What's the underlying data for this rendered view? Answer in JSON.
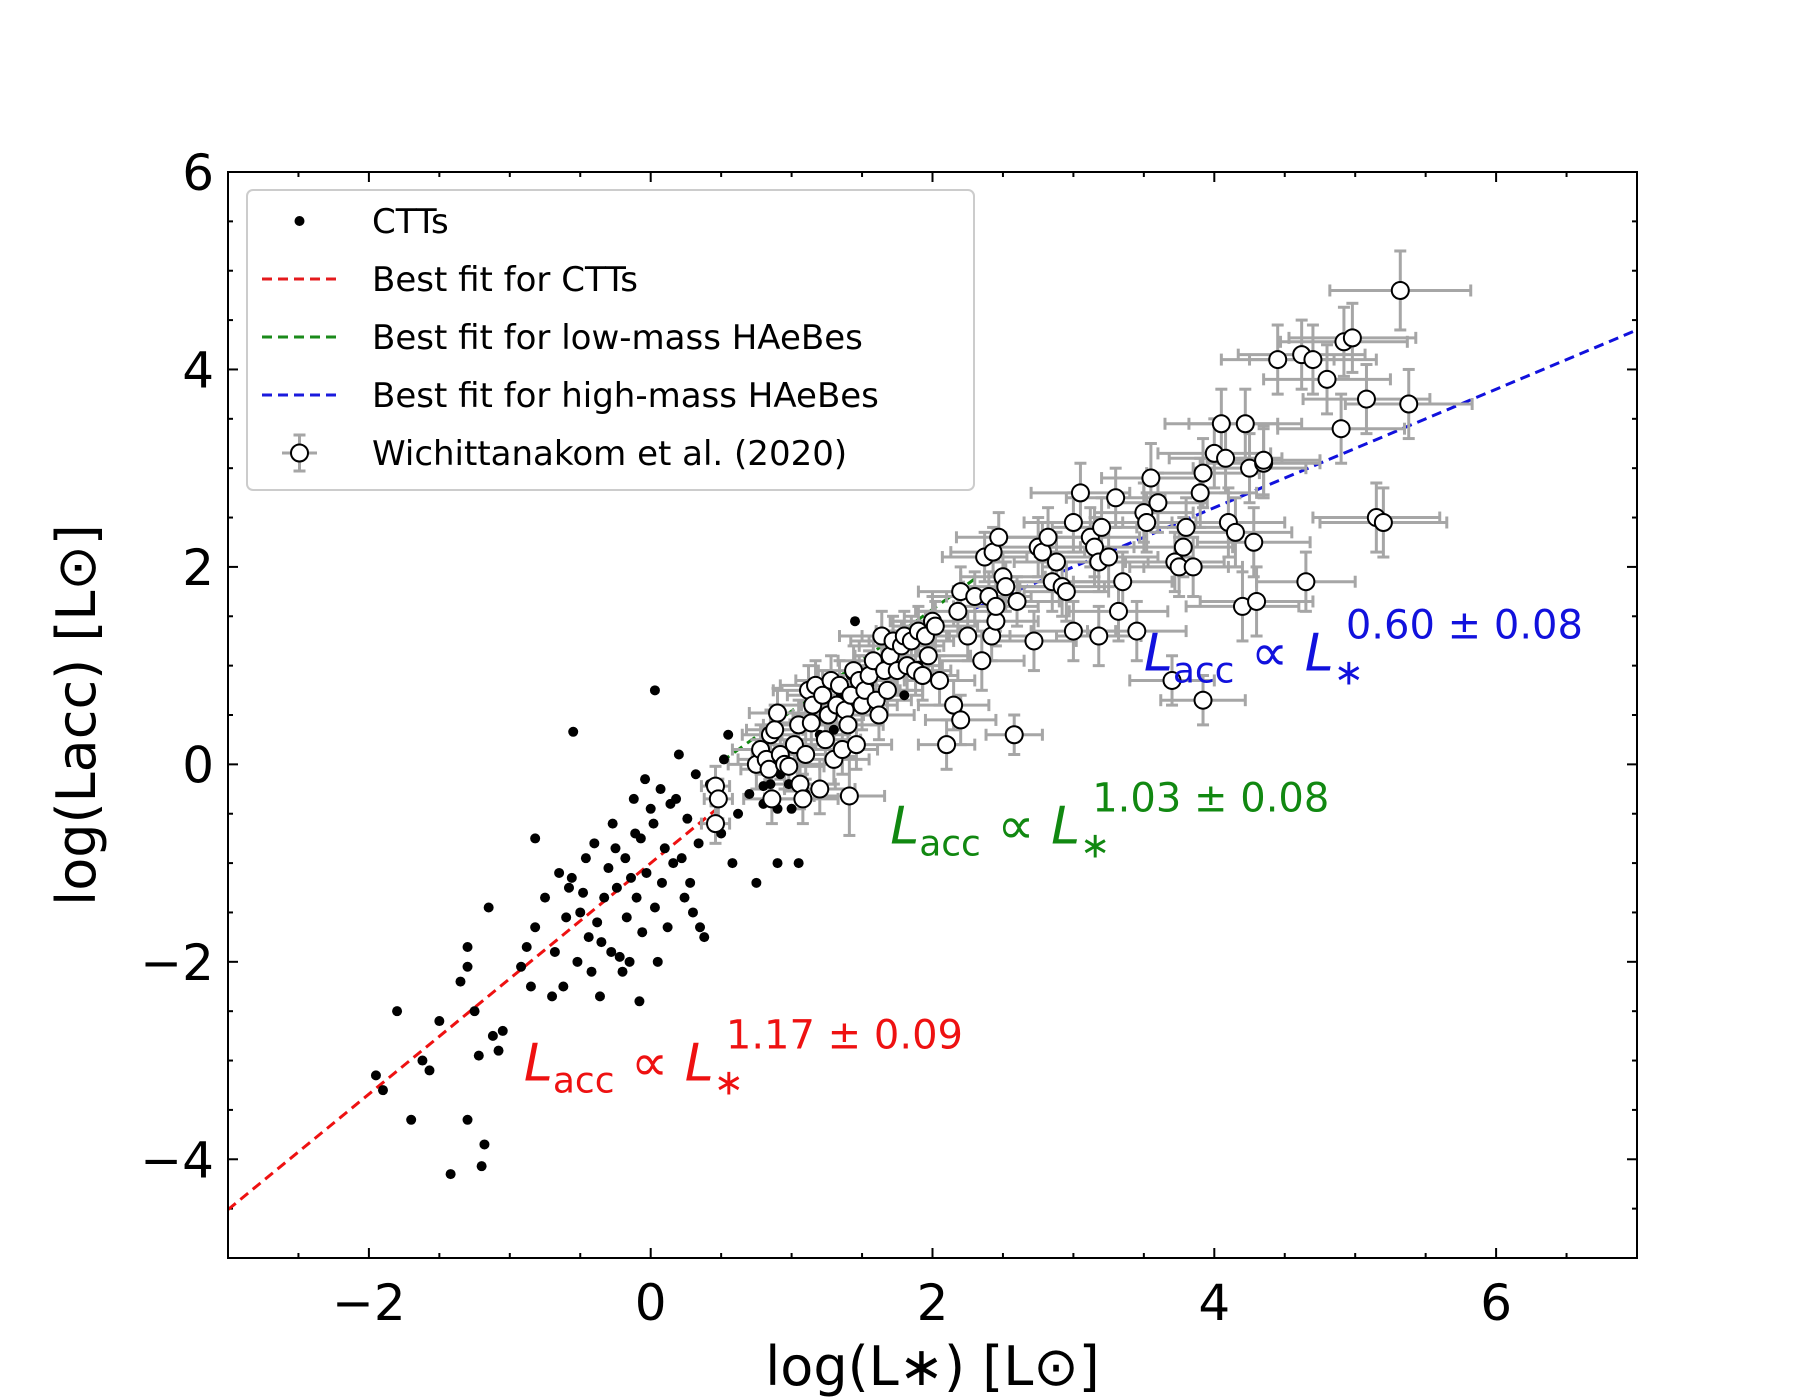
{
  "chart_data": {
    "type": "scatter",
    "xlabel": "log(L∗) [L⊙]",
    "ylabel": "log(Lacc) [L⊙]",
    "xlim": [
      -3,
      7
    ],
    "ylim": [
      -5,
      6
    ],
    "xticks": [
      -2,
      0,
      2,
      4,
      6
    ],
    "yticks": [
      -4,
      -2,
      0,
      2,
      4,
      6
    ],
    "xtick_labels": [
      "−2",
      "0",
      "2",
      "4",
      "6"
    ],
    "ytick_labels": [
      "−4",
      "−2",
      "0",
      "2",
      "4",
      "6"
    ],
    "legend": {
      "position": "upper-left",
      "entries": [
        {
          "label": "CTTs",
          "marker": "dot",
          "color": "#000000"
        },
        {
          "label": "Best fit for CTTs",
          "marker": "dashed-line",
          "color": "#e41a1c"
        },
        {
          "label": "Best fit for low-mass HAeBes",
          "marker": "dashed-line",
          "color": "#1a8a1a"
        },
        {
          "label": "Best fit for high-mass HAeBes",
          "marker": "dashed-line",
          "color": "#1a1add"
        },
        {
          "label": "Wichittanakom et al. (2020)",
          "marker": "open-circle-errorbar",
          "color": "#000000"
        }
      ]
    },
    "fits": [
      {
        "name": "Best fit for CTTs",
        "color": "#ee1111",
        "slope": 1.17,
        "x_range": [
          -3,
          0.5
        ],
        "y_at_x0": -1.0
      },
      {
        "name": "Best fit for low-mass HAeBes",
        "color": "#118811",
        "slope": 1.03,
        "x_range": [
          0.5,
          2.3
        ],
        "y_at_x0": -0.49
      },
      {
        "name": "Best fit for high-mass HAeBes",
        "color": "#1111dd",
        "slope": 0.6,
        "x_range": [
          2.3,
          7
        ],
        "y_at_x0": 0.2
      }
    ],
    "annotations": [
      {
        "base": "L",
        "sub": "acc",
        "mid": " ∝ ",
        "base2": "L",
        "sub2": "∗",
        "sup": "1.17 ± 0.09",
        "x": -0.9,
        "y": -3.2,
        "color": "#ee1111"
      },
      {
        "base": "L",
        "sub": "acc",
        "mid": " ∝ ",
        "base2": "L",
        "sub2": "∗",
        "sup": "1.03 ± 0.08",
        "x": 1.7,
        "y": -0.8,
        "color": "#118811"
      },
      {
        "base": "L",
        "sub": "acc",
        "mid": " ∝ ",
        "base2": "L",
        "sub2": "∗",
        "sup": "0.60 ± 0.08",
        "x": 3.5,
        "y": 0.95,
        "color": "#1111dd"
      }
    ],
    "ctts": [
      [
        -1.95,
        -3.15
      ],
      [
        -1.9,
        -3.3
      ],
      [
        -1.8,
        -2.5
      ],
      [
        -1.7,
        -3.6
      ],
      [
        -1.62,
        -3.0
      ],
      [
        -1.57,
        -3.1
      ],
      [
        -1.5,
        -2.6
      ],
      [
        -1.42,
        -4.15
      ],
      [
        -1.35,
        -2.2
      ],
      [
        -1.3,
        -1.85
      ],
      [
        -1.3,
        -2.05
      ],
      [
        -1.3,
        -3.6
      ],
      [
        -1.25,
        -2.5
      ],
      [
        -1.22,
        -2.95
      ],
      [
        -1.2,
        -4.07
      ],
      [
        -1.18,
        -3.85
      ],
      [
        -1.15,
        -1.45
      ],
      [
        -1.12,
        -2.75
      ],
      [
        -1.08,
        -2.9
      ],
      [
        -1.05,
        -2.7
      ],
      [
        -0.92,
        -2.05
      ],
      [
        -0.88,
        -1.85
      ],
      [
        -0.85,
        -2.25
      ],
      [
        -0.82,
        -0.75
      ],
      [
        -0.82,
        -1.65
      ],
      [
        -0.75,
        -1.35
      ],
      [
        -0.7,
        -2.35
      ],
      [
        -0.68,
        -1.9
      ],
      [
        -0.65,
        -1.1
      ],
      [
        -0.62,
        -2.25
      ],
      [
        -0.6,
        -1.55
      ],
      [
        -0.58,
        -1.25
      ],
      [
        -0.56,
        -1.15
      ],
      [
        -0.55,
        0.33
      ],
      [
        -0.52,
        -2.0
      ],
      [
        -0.5,
        -1.5
      ],
      [
        -0.48,
        -1.3
      ],
      [
        -0.46,
        -0.95
      ],
      [
        -0.44,
        -1.75
      ],
      [
        -0.42,
        -2.1
      ],
      [
        -0.4,
        -0.8
      ],
      [
        -0.38,
        -1.6
      ],
      [
        -0.36,
        -2.35
      ],
      [
        -0.35,
        -1.8
      ],
      [
        -0.33,
        -1.35
      ],
      [
        -0.3,
        -1.05
      ],
      [
        -0.28,
        -1.9
      ],
      [
        -0.27,
        -0.6
      ],
      [
        -0.25,
        -0.85
      ],
      [
        -0.24,
        -1.25
      ],
      [
        -0.22,
        -1.95
      ],
      [
        -0.2,
        -2.1
      ],
      [
        -0.18,
        -0.95
      ],
      [
        -0.17,
        -1.55
      ],
      [
        -0.15,
        -2.0
      ],
      [
        -0.14,
        -1.15
      ],
      [
        -0.12,
        -0.35
      ],
      [
        -0.11,
        -0.7
      ],
      [
        -0.1,
        -1.35
      ],
      [
        -0.08,
        -2.4
      ],
      [
        -0.07,
        -0.75
      ],
      [
        -0.06,
        -1.7
      ],
      [
        -0.04,
        -0.15
      ],
      [
        -0.03,
        -1.1
      ],
      [
        0.0,
        -0.45
      ],
      [
        0.02,
        -0.6
      ],
      [
        0.03,
        -1.45
      ],
      [
        0.03,
        0.75
      ],
      [
        0.05,
        -2.0
      ],
      [
        0.07,
        -0.25
      ],
      [
        0.08,
        -1.2
      ],
      [
        0.1,
        -0.85
      ],
      [
        0.12,
        -1.65
      ],
      [
        0.14,
        -0.4
      ],
      [
        0.16,
        -1.0
      ],
      [
        0.18,
        -0.35
      ],
      [
        0.2,
        0.1
      ],
      [
        0.22,
        -0.95
      ],
      [
        0.24,
        -1.35
      ],
      [
        0.26,
        -0.55
      ],
      [
        0.28,
        -1.2
      ],
      [
        0.3,
        -1.5
      ],
      [
        0.32,
        -0.1
      ],
      [
        0.34,
        -0.8
      ],
      [
        0.35,
        -1.65
      ],
      [
        0.38,
        -1.75
      ],
      [
        0.42,
        -0.2
      ],
      [
        0.45,
        -0.6
      ],
      [
        0.5,
        -0.7
      ],
      [
        0.52,
        0.05
      ],
      [
        0.55,
        0.3
      ],
      [
        0.58,
        -1.0
      ],
      [
        0.62,
        -0.5
      ],
      [
        0.7,
        -0.3
      ],
      [
        0.75,
        -1.2
      ],
      [
        0.8,
        -0.4
      ],
      [
        0.8,
        -0.22
      ],
      [
        0.85,
        -0.2
      ],
      [
        0.9,
        -1.0
      ],
      [
        0.9,
        -0.45
      ],
      [
        0.92,
        -0.1
      ],
      [
        0.98,
        -0.2
      ],
      [
        1.0,
        -0.45
      ],
      [
        1.05,
        -1.0
      ],
      [
        1.1,
        -0.3
      ],
      [
        1.2,
        0.3
      ],
      [
        1.3,
        0.35
      ],
      [
        1.35,
        0.7
      ],
      [
        1.38,
        0.65
      ],
      [
        1.42,
        0.9
      ],
      [
        1.45,
        1.45
      ],
      [
        1.55,
        0.8
      ],
      [
        1.65,
        0.75
      ],
      [
        1.75,
        0.95
      ],
      [
        1.8,
        0.7
      ],
      [
        1.9,
        1.0
      ]
    ],
    "haebes": [
      [
        0.46,
        -0.22,
        0.1,
        0.2
      ],
      [
        0.46,
        -0.6,
        0.1,
        0.2
      ],
      [
        0.48,
        -0.35,
        0.1,
        0.2
      ],
      [
        0.75,
        0.0,
        0.2,
        0.25
      ],
      [
        0.78,
        0.15,
        0.2,
        0.25
      ],
      [
        0.82,
        0.05,
        0.2,
        0.25
      ],
      [
        0.84,
        -0.05,
        0.2,
        0.25
      ],
      [
        0.85,
        0.3,
        0.2,
        0.25
      ],
      [
        0.86,
        -0.35,
        0.2,
        0.25
      ],
      [
        0.88,
        0.35,
        0.2,
        0.25
      ],
      [
        0.9,
        0.52,
        0.2,
        0.25
      ],
      [
        0.92,
        0.1,
        0.2,
        0.25
      ],
      [
        0.95,
        0.0,
        0.25,
        0.25
      ],
      [
        0.98,
        -0.02,
        0.25,
        0.25
      ],
      [
        1.02,
        0.2,
        0.25,
        0.25
      ],
      [
        1.05,
        0.4,
        0.25,
        0.25
      ],
      [
        1.06,
        -0.2,
        0.25,
        0.25
      ],
      [
        1.08,
        -0.35,
        0.25,
        0.25
      ],
      [
        1.1,
        0.1,
        0.25,
        0.25
      ],
      [
        1.12,
        0.75,
        0.25,
        0.25
      ],
      [
        1.14,
        0.42,
        0.25,
        0.25
      ],
      [
        1.15,
        0.6,
        0.25,
        0.25
      ],
      [
        1.17,
        0.8,
        0.25,
        0.25
      ],
      [
        1.2,
        -0.25,
        0.25,
        0.25
      ],
      [
        1.22,
        0.7,
        0.25,
        0.25
      ],
      [
        1.24,
        0.25,
        0.25,
        0.25
      ],
      [
        1.26,
        0.5,
        0.25,
        0.25
      ],
      [
        1.28,
        0.85,
        0.25,
        0.25
      ],
      [
        1.3,
        0.05,
        0.25,
        0.25
      ],
      [
        1.32,
        0.6,
        0.25,
        0.25
      ],
      [
        1.34,
        0.8,
        0.25,
        0.25
      ],
      [
        1.36,
        0.15,
        0.25,
        0.25
      ],
      [
        1.38,
        0.55,
        0.25,
        0.25
      ],
      [
        1.4,
        0.4,
        0.25,
        0.25
      ],
      [
        1.41,
        -0.32,
        0.25,
        0.4
      ],
      [
        1.42,
        0.7,
        0.25,
        0.25
      ],
      [
        1.44,
        0.95,
        0.25,
        0.25
      ],
      [
        1.46,
        0.2,
        0.25,
        0.25
      ],
      [
        1.48,
        0.85,
        0.25,
        0.25
      ],
      [
        1.5,
        0.6,
        0.25,
        0.25
      ],
      [
        1.52,
        0.75,
        0.25,
        0.25
      ],
      [
        1.55,
        0.9,
        0.25,
        0.25
      ],
      [
        1.58,
        1.05,
        0.25,
        0.25
      ],
      [
        1.6,
        0.65,
        0.25,
        0.25
      ],
      [
        1.62,
        0.5,
        0.25,
        0.25
      ],
      [
        1.64,
        1.3,
        0.3,
        0.25
      ],
      [
        1.66,
        0.95,
        0.25,
        0.25
      ],
      [
        1.68,
        0.75,
        0.25,
        0.25
      ],
      [
        1.7,
        1.1,
        0.25,
        0.25
      ],
      [
        1.72,
        1.25,
        0.3,
        0.25
      ],
      [
        1.75,
        0.95,
        0.25,
        0.25
      ],
      [
        1.78,
        1.2,
        0.3,
        0.25
      ],
      [
        1.8,
        1.3,
        0.3,
        0.25
      ],
      [
        1.82,
        1.0,
        0.25,
        0.25
      ],
      [
        1.85,
        1.25,
        0.3,
        0.25
      ],
      [
        1.88,
        0.95,
        0.25,
        0.25
      ],
      [
        1.9,
        1.35,
        0.3,
        0.25
      ],
      [
        1.93,
        0.9,
        0.25,
        0.25
      ],
      [
        1.95,
        1.3,
        0.3,
        0.25
      ],
      [
        1.97,
        1.1,
        0.3,
        0.25
      ],
      [
        2.0,
        1.45,
        0.3,
        0.25
      ],
      [
        2.02,
        1.4,
        0.3,
        0.25
      ],
      [
        2.05,
        0.85,
        0.25,
        0.25
      ],
      [
        2.1,
        0.2,
        0.2,
        0.25
      ],
      [
        2.15,
        0.6,
        0.25,
        0.25
      ],
      [
        2.18,
        1.55,
        0.3,
        0.25
      ],
      [
        2.2,
        1.75,
        0.3,
        0.25
      ],
      [
        2.2,
        0.45,
        0.25,
        0.25
      ],
      [
        2.25,
        1.3,
        0.3,
        0.25
      ],
      [
        2.3,
        1.7,
        0.3,
        0.25
      ],
      [
        2.35,
        1.05,
        0.3,
        0.3
      ],
      [
        2.37,
        2.1,
        0.3,
        0.25
      ],
      [
        2.4,
        1.7,
        0.3,
        0.25
      ],
      [
        2.42,
        1.3,
        0.3,
        0.25
      ],
      [
        2.43,
        2.15,
        0.3,
        0.25
      ],
      [
        2.45,
        1.45,
        0.3,
        0.25
      ],
      [
        2.45,
        1.6,
        0.3,
        0.25
      ],
      [
        2.47,
        2.3,
        0.3,
        0.25
      ],
      [
        2.5,
        1.9,
        0.3,
        0.25
      ],
      [
        2.52,
        1.8,
        0.3,
        0.25
      ],
      [
        2.58,
        0.3,
        0.2,
        0.2
      ],
      [
        2.6,
        1.65,
        0.3,
        0.25
      ],
      [
        2.72,
        1.25,
        0.3,
        0.3
      ],
      [
        2.75,
        2.2,
        0.3,
        0.3
      ],
      [
        2.78,
        2.15,
        0.3,
        0.3
      ],
      [
        2.82,
        2.3,
        0.3,
        0.3
      ],
      [
        2.85,
        1.85,
        0.3,
        0.3
      ],
      [
        2.88,
        2.05,
        0.3,
        0.3
      ],
      [
        2.92,
        1.8,
        0.3,
        0.3
      ],
      [
        2.95,
        1.75,
        0.3,
        0.3
      ],
      [
        3.0,
        2.45,
        0.35,
        0.3
      ],
      [
        3.0,
        1.35,
        0.3,
        0.3
      ],
      [
        3.05,
        2.75,
        0.35,
        0.3
      ],
      [
        3.12,
        2.3,
        0.35,
        0.3
      ],
      [
        3.15,
        2.2,
        0.35,
        0.3
      ],
      [
        3.18,
        2.05,
        0.35,
        0.3
      ],
      [
        3.18,
        1.3,
        0.3,
        0.3
      ],
      [
        3.2,
        2.4,
        0.35,
        0.3
      ],
      [
        3.25,
        2.1,
        0.35,
        0.3
      ],
      [
        3.3,
        2.7,
        0.35,
        0.3
      ],
      [
        3.32,
        1.55,
        0.35,
        0.3
      ],
      [
        3.35,
        1.85,
        0.35,
        0.3
      ],
      [
        3.45,
        1.35,
        0.35,
        0.3
      ],
      [
        3.5,
        2.55,
        0.35,
        0.3
      ],
      [
        3.52,
        2.45,
        0.35,
        0.3
      ],
      [
        3.55,
        2.9,
        0.35,
        0.35
      ],
      [
        3.6,
        2.65,
        0.35,
        0.3
      ],
      [
        3.7,
        0.85,
        0.3,
        0.25
      ],
      [
        3.72,
        2.05,
        0.35,
        0.3
      ],
      [
        3.75,
        2.0,
        0.35,
        0.3
      ],
      [
        3.78,
        2.2,
        0.35,
        0.3
      ],
      [
        3.8,
        2.4,
        0.35,
        0.3
      ],
      [
        3.85,
        2.0,
        0.35,
        0.3
      ],
      [
        3.9,
        2.75,
        0.4,
        0.35
      ],
      [
        3.92,
        2.95,
        0.4,
        0.35
      ],
      [
        3.92,
        0.65,
        0.3,
        0.25
      ],
      [
        4.0,
        3.15,
        0.4,
        0.35
      ],
      [
        4.05,
        3.45,
        0.4,
        0.35
      ],
      [
        4.08,
        3.1,
        0.4,
        0.35
      ],
      [
        4.1,
        2.45,
        0.4,
        0.35
      ],
      [
        4.15,
        2.35,
        0.4,
        0.35
      ],
      [
        4.2,
        1.6,
        0.4,
        0.35
      ],
      [
        4.22,
        3.45,
        0.4,
        0.35
      ],
      [
        4.25,
        3.0,
        0.4,
        0.35
      ],
      [
        4.28,
        2.25,
        0.4,
        0.35
      ],
      [
        4.3,
        1.65,
        0.4,
        0.35
      ],
      [
        4.35,
        3.05,
        0.4,
        0.35
      ],
      [
        4.35,
        3.08,
        0.4,
        0.35
      ],
      [
        4.45,
        4.1,
        0.4,
        0.35
      ],
      [
        4.62,
        4.15,
        0.45,
        0.35
      ],
      [
        4.65,
        1.85,
        0.35,
        0.3
      ],
      [
        4.7,
        4.1,
        0.45,
        0.35
      ],
      [
        4.8,
        3.9,
        0.45,
        0.35
      ],
      [
        4.9,
        3.4,
        0.45,
        0.35
      ],
      [
        4.92,
        4.28,
        0.45,
        0.35
      ],
      [
        4.98,
        4.32,
        0.45,
        0.35
      ],
      [
        5.08,
        3.7,
        0.45,
        0.35
      ],
      [
        5.15,
        2.5,
        0.45,
        0.35
      ],
      [
        5.2,
        2.45,
        0.45,
        0.35
      ],
      [
        5.32,
        4.8,
        0.5,
        0.4
      ],
      [
        5.38,
        3.65,
        0.45,
        0.35
      ]
    ]
  }
}
